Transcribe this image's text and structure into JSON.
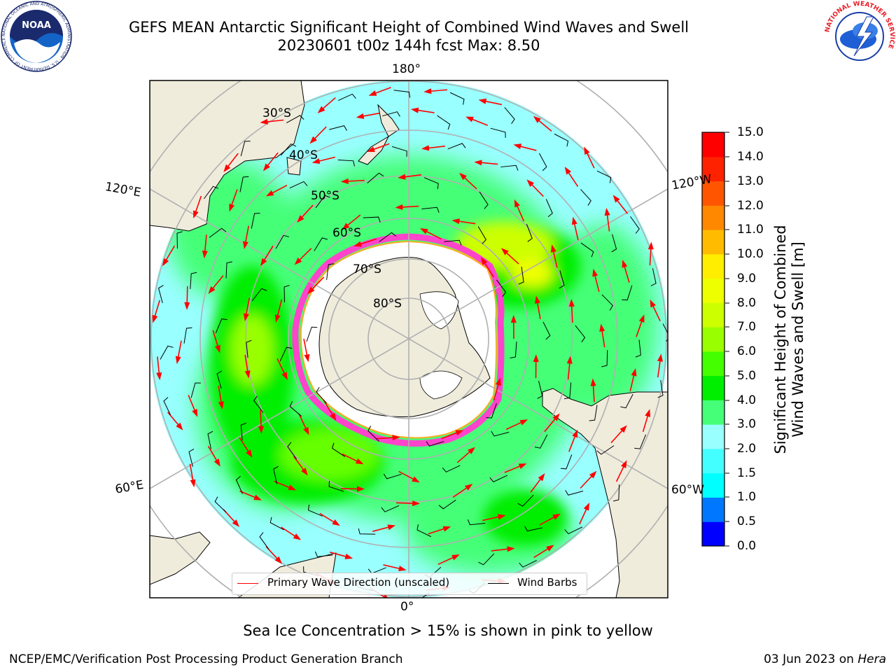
{
  "header": {
    "title_line1": "GEFS MEAN Antarctic Significant Height of Combined Wind Waves and Swell",
    "title_line2": "20230601 t00z 144h fcst   Max: 8.50"
  },
  "logos": {
    "noaa": "NOAA",
    "noaa_ring": "NATIONAL OCEANIC AND ATMOSPHERIC ADMINISTRATION · U.S. DEPARTMENT OF COMMERCE",
    "nws": "NATIONAL WEATHER SERVICE"
  },
  "map": {
    "projection": "south-polar-stereographic",
    "longitude_labels": {
      "top": "180°",
      "bottom": "0°",
      "upper_left": "120°E",
      "upper_right": "120°W",
      "lower_left": "60°E",
      "lower_right": "60°W"
    },
    "latitude_labels": [
      "30°S",
      "40°S",
      "50°S",
      "60°S",
      "70°S",
      "80°S"
    ],
    "colors": {
      "ocean_low": "#99ffff",
      "ocean_mid": "#44ff77",
      "ocean_high": "#00ee00",
      "ocean_peak": "#66ff00",
      "yellow_green": "#ccff00",
      "land": "#efecdc",
      "ice_shelf": "#ffffff",
      "sea_ice": "#ff44cc",
      "wave_arrow": "#ff0000",
      "wind_barb": "#000000",
      "gridline": "#b0b0b0"
    },
    "icon_names": [
      "wave-direction-arrow-icon",
      "wind-barb-icon"
    ]
  },
  "legend": {
    "wave_label": "Primary Wave Direction (unscaled)",
    "barb_label": "Wind Barbs"
  },
  "colorbar": {
    "label_line1": "Significant Height of Combined",
    "label_line2": "Wind Waves and Swell [m]",
    "ticks": [
      "0.0",
      "0.5",
      "1.0",
      "1.5",
      "2.0",
      "3.0",
      "4.0",
      "5.0",
      "6.0",
      "7.0",
      "8.0",
      "9.0",
      "10.0",
      "11.0",
      "12.0",
      "13.0",
      "14.0",
      "15.0"
    ],
    "colors": [
      "#0000ff",
      "#0077ff",
      "#00ffff",
      "#44ffff",
      "#99ffff",
      "#44ff77",
      "#00ee00",
      "#44ff00",
      "#99ff00",
      "#ccff00",
      "#eeff00",
      "#ffee00",
      "#ffbb00",
      "#ff8800",
      "#ff5500",
      "#ff2200",
      "#ff0000"
    ]
  },
  "footer": {
    "subtitle": "Sea Ice Concentration > 15% is shown in pink to yellow",
    "credit": "NCEP/EMC/Verification Post Processing Product Generation Branch",
    "date": "03 Jun 2023 on",
    "system": "Hera"
  }
}
